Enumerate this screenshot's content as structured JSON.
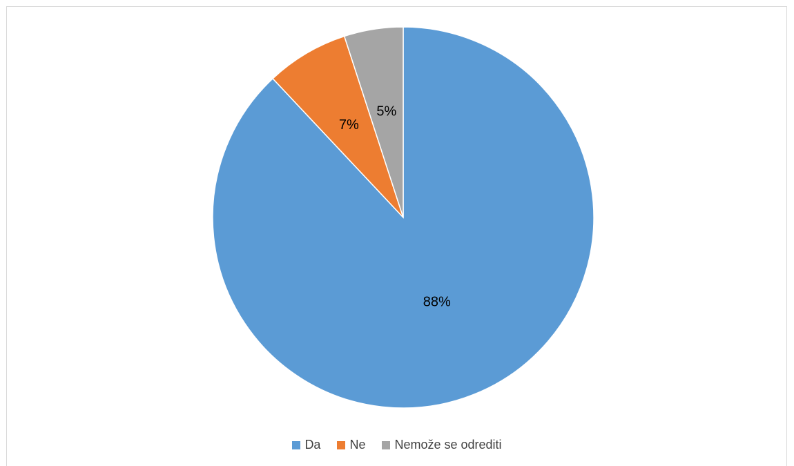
{
  "chart_data": {
    "type": "pie",
    "title": "",
    "slices": [
      {
        "label": "Da",
        "value": 88,
        "display": "88%",
        "color": "#5b9bd5"
      },
      {
        "label": "Ne",
        "value": 7,
        "display": "7%",
        "color": "#ed7d31"
      },
      {
        "label": "Nemože se odrediti",
        "value": 5,
        "display": "5%",
        "color": "#a5a5a5"
      }
    ],
    "legend_position": "bottom",
    "start_angle_deg": 0,
    "direction": "clockwise"
  }
}
